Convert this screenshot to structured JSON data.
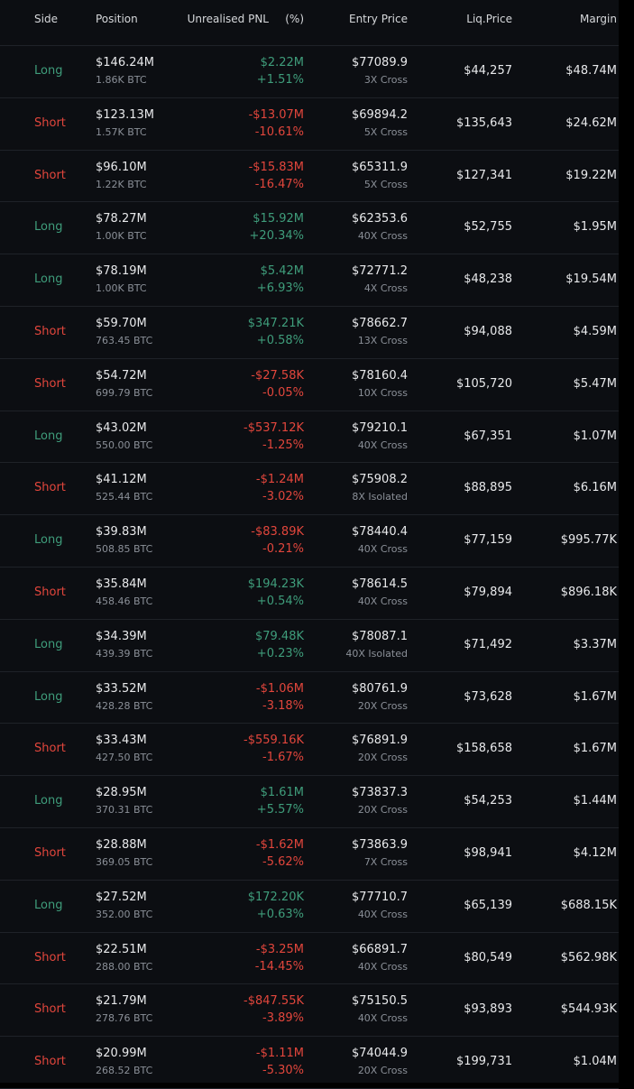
{
  "header": {
    "side": "Side",
    "position": "Position",
    "pnl": "Unrealised PNL",
    "pnl_pct": "(%)",
    "entry_price": "Entry Price",
    "liq_price": "Liq.Price",
    "margin": "Margin"
  },
  "colors": {
    "Long": "#3f9d7b",
    "Short": "#e2463c"
  },
  "table": {
    "rows": [
      {
        "side": "Long",
        "position": "$146.24M",
        "size": "1.86K BTC",
        "pnl": "$2.22M",
        "pnl_pct": "+1.51%",
        "entry_price": "$77089.9",
        "leverage": "3X Cross",
        "liq_price": "$44,257",
        "margin": "$48.74M"
      },
      {
        "side": "Short",
        "position": "$123.13M",
        "size": "1.57K BTC",
        "pnl": "-$13.07M",
        "pnl_pct": "-10.61%",
        "entry_price": "$69894.2",
        "leverage": "5X Cross",
        "liq_price": "$135,643",
        "margin": "$24.62M"
      },
      {
        "side": "Short",
        "position": "$96.10M",
        "size": "1.22K BTC",
        "pnl": "-$15.83M",
        "pnl_pct": "-16.47%",
        "entry_price": "$65311.9",
        "leverage": "5X Cross",
        "liq_price": "$127,341",
        "margin": "$19.22M"
      },
      {
        "side": "Long",
        "position": "$78.27M",
        "size": "1.00K BTC",
        "pnl": "$15.92M",
        "pnl_pct": "+20.34%",
        "entry_price": "$62353.6",
        "leverage": "40X Cross",
        "liq_price": "$52,755",
        "margin": "$1.95M"
      },
      {
        "side": "Long",
        "position": "$78.19M",
        "size": "1.00K BTC",
        "pnl": "$5.42M",
        "pnl_pct": "+6.93%",
        "entry_price": "$72771.2",
        "leverage": "4X Cross",
        "liq_price": "$48,238",
        "margin": "$19.54M"
      },
      {
        "side": "Short",
        "position": "$59.70M",
        "size": "763.45 BTC",
        "pnl": "$347.21K",
        "pnl_pct": "+0.58%",
        "entry_price": "$78662.7",
        "leverage": "13X Cross",
        "liq_price": "$94,088",
        "margin": "$4.59M"
      },
      {
        "side": "Short",
        "position": "$54.72M",
        "size": "699.79 BTC",
        "pnl": "-$27.58K",
        "pnl_pct": "-0.05%",
        "entry_price": "$78160.4",
        "leverage": "10X Cross",
        "liq_price": "$105,720",
        "margin": "$5.47M"
      },
      {
        "side": "Long",
        "position": "$43.02M",
        "size": "550.00 BTC",
        "pnl": "-$537.12K",
        "pnl_pct": "-1.25%",
        "entry_price": "$79210.1",
        "leverage": "40X Cross",
        "liq_price": "$67,351",
        "margin": "$1.07M"
      },
      {
        "side": "Short",
        "position": "$41.12M",
        "size": "525.44 BTC",
        "pnl": "-$1.24M",
        "pnl_pct": "-3.02%",
        "entry_price": "$75908.2",
        "leverage": "8X Isolated",
        "liq_price": "$88,895",
        "margin": "$6.16M"
      },
      {
        "side": "Long",
        "position": "$39.83M",
        "size": "508.85 BTC",
        "pnl": "-$83.89K",
        "pnl_pct": "-0.21%",
        "entry_price": "$78440.4",
        "leverage": "40X Cross",
        "liq_price": "$77,159",
        "margin": "$995.77K"
      },
      {
        "side": "Short",
        "position": "$35.84M",
        "size": "458.46 BTC",
        "pnl": "$194.23K",
        "pnl_pct": "+0.54%",
        "entry_price": "$78614.5",
        "leverage": "40X Cross",
        "liq_price": "$79,894",
        "margin": "$896.18K"
      },
      {
        "side": "Long",
        "position": "$34.39M",
        "size": "439.39 BTC",
        "pnl": "$79.48K",
        "pnl_pct": "+0.23%",
        "entry_price": "$78087.1",
        "leverage": "40X Isolated",
        "liq_price": "$71,492",
        "margin": "$3.37M"
      },
      {
        "side": "Long",
        "position": "$33.52M",
        "size": "428.28 BTC",
        "pnl": "-$1.06M",
        "pnl_pct": "-3.18%",
        "entry_price": "$80761.9",
        "leverage": "20X Cross",
        "liq_price": "$73,628",
        "margin": "$1.67M"
      },
      {
        "side": "Short",
        "position": "$33.43M",
        "size": "427.50 BTC",
        "pnl": "-$559.16K",
        "pnl_pct": "-1.67%",
        "entry_price": "$76891.9",
        "leverage": "20X Cross",
        "liq_price": "$158,658",
        "margin": "$1.67M"
      },
      {
        "side": "Long",
        "position": "$28.95M",
        "size": "370.31 BTC",
        "pnl": "$1.61M",
        "pnl_pct": "+5.57%",
        "entry_price": "$73837.3",
        "leverage": "20X Cross",
        "liq_price": "$54,253",
        "margin": "$1.44M"
      },
      {
        "side": "Short",
        "position": "$28.88M",
        "size": "369.05 BTC",
        "pnl": "-$1.62M",
        "pnl_pct": "-5.62%",
        "entry_price": "$73863.9",
        "leverage": "7X Cross",
        "liq_price": "$98,941",
        "margin": "$4.12M"
      },
      {
        "side": "Long",
        "position": "$27.52M",
        "size": "352.00 BTC",
        "pnl": "$172.20K",
        "pnl_pct": "+0.63%",
        "entry_price": "$77710.7",
        "leverage": "40X Cross",
        "liq_price": "$65,139",
        "margin": "$688.15K"
      },
      {
        "side": "Short",
        "position": "$22.51M",
        "size": "288.00 BTC",
        "pnl": "-$3.25M",
        "pnl_pct": "-14.45%",
        "entry_price": "$66891.7",
        "leverage": "40X Cross",
        "liq_price": "$80,549",
        "margin": "$562.98K"
      },
      {
        "side": "Short",
        "position": "$21.79M",
        "size": "278.76 BTC",
        "pnl": "-$847.55K",
        "pnl_pct": "-3.89%",
        "entry_price": "$75150.5",
        "leverage": "40X Cross",
        "liq_price": "$93,893",
        "margin": "$544.93K"
      },
      {
        "side": "Short",
        "position": "$20.99M",
        "size": "268.52 BTC",
        "pnl": "-$1.11M",
        "pnl_pct": "-5.30%",
        "entry_price": "$74044.9",
        "leverage": "20X Cross",
        "liq_price": "$199,731",
        "margin": "$1.04M"
      }
    ]
  }
}
